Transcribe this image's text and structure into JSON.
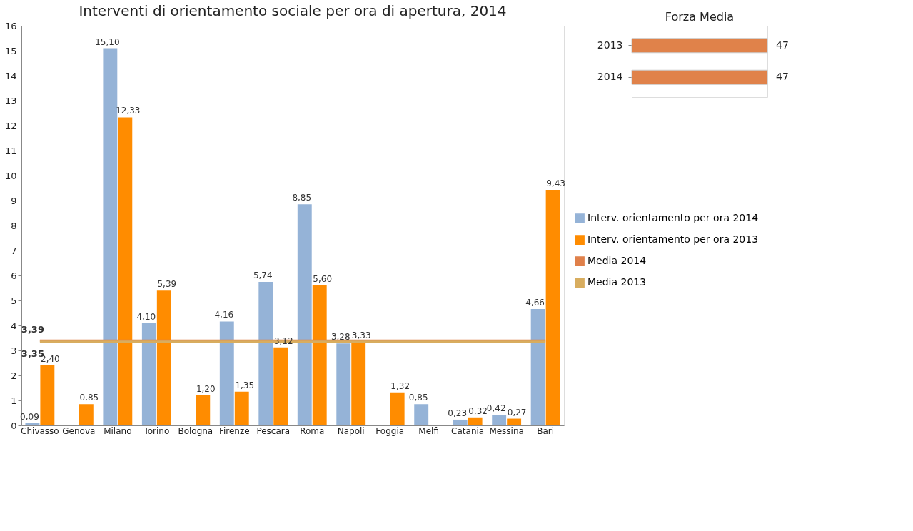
{
  "chart_data": [
    {
      "type": "bar",
      "title": "Interventi di orientamento sociale per ora di apertura, 2014",
      "categories": [
        "Chivasso",
        "Genova",
        "Milano",
        "Torino",
        "Bologna",
        "Firenze",
        "Pescara",
        "Roma",
        "Napoli",
        "Foggia",
        "Melfi",
        "Catania",
        "Messina",
        "Bari"
      ],
      "series": [
        {
          "name": "Interv. orientamento per ora 2014",
          "color": "#95b3d7",
          "values": [
            0.09,
            null,
            15.1,
            4.1,
            null,
            4.16,
            5.74,
            8.85,
            3.28,
            null,
            0.85,
            0.23,
            0.42,
            4.66
          ],
          "value_labels": [
            "0,09",
            null,
            "15,10",
            "4,10",
            null,
            "4,16",
            "5,74",
            "8,85",
            "3,28",
            null,
            "0,85",
            "0,23",
            "0,42",
            "4,66"
          ]
        },
        {
          "name": "Interv. orientamento per ora 2013",
          "color": "#ff8c00",
          "values": [
            2.4,
            0.85,
            12.33,
            5.39,
            1.2,
            1.35,
            3.12,
            5.6,
            3.33,
            1.32,
            null,
            0.32,
            0.27,
            9.43
          ],
          "value_labels": [
            "2,40",
            "0,85",
            "12,33",
            "5,39",
            "1,20",
            "1,35",
            "3,12",
            "5,60",
            "3,33",
            "1,32",
            null,
            "0,32",
            "0,27",
            "9,43"
          ]
        },
        {
          "name": "Media 2014",
          "type": "line",
          "color": "#e0804a",
          "values": [
            3.39,
            3.39,
            3.39,
            3.39,
            3.39,
            3.39,
            3.39,
            3.39,
            3.39,
            3.39,
            3.39,
            3.39,
            3.39,
            3.39
          ],
          "value_labels": [
            "3,39",
            null,
            null,
            null,
            null,
            null,
            null,
            null,
            null,
            null,
            null,
            null,
            null,
            null
          ]
        },
        {
          "name": "Media 2013",
          "type": "line",
          "color": "#d8ad5f",
          "values": [
            3.35,
            3.35,
            3.35,
            3.35,
            3.35,
            3.35,
            3.35,
            3.35,
            3.35,
            3.35,
            3.35,
            3.35,
            3.35,
            3.35
          ],
          "value_labels": [
            "3,35",
            null,
            null,
            null,
            null,
            null,
            null,
            null,
            null,
            null,
            null,
            null,
            null,
            null
          ]
        }
      ],
      "ylim": [
        0,
        16
      ],
      "yticks": [
        0,
        1,
        2,
        3,
        4,
        5,
        6,
        7,
        8,
        9,
        10,
        11,
        12,
        13,
        14,
        15,
        16
      ],
      "legend": "right"
    },
    {
      "type": "bar",
      "orientation": "horizontal",
      "title": "Forza Media",
      "categories": [
        "2013",
        "2014"
      ],
      "values": [
        47,
        47
      ],
      "color": "#e0824a",
      "data_labels": true,
      "tick_labels": "y"
    }
  ]
}
